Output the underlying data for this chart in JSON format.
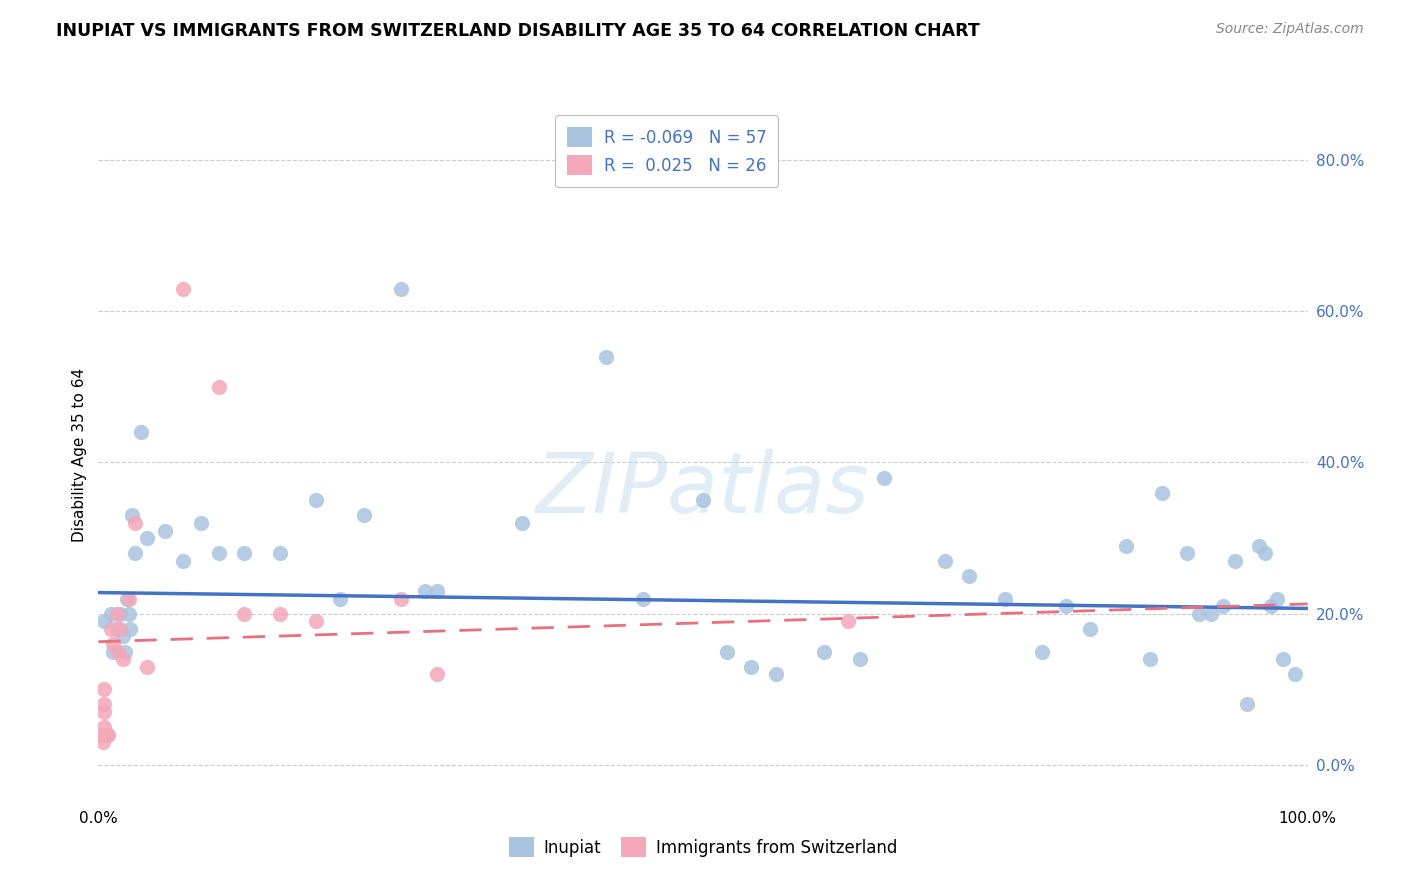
{
  "title": "INUPIAT VS IMMIGRANTS FROM SWITZERLAND DISABILITY AGE 35 TO 64 CORRELATION CHART",
  "source": "Source: ZipAtlas.com",
  "ylabel": "Disability Age 35 to 64",
  "legend_label1": "Inupiat",
  "legend_label2": "Immigrants from Switzerland",
  "r1": "-0.069",
  "n1": "57",
  "r2": "0.025",
  "n2": "26",
  "color1": "#a8c4e0",
  "color2": "#f4a7b9",
  "trendline1_color": "#4472c4",
  "trendline2_color": "#e8707e",
  "watermark": "ZIPatlas",
  "xlim": [
    0.0,
    1.0
  ],
  "ylim": [
    -0.05,
    0.87
  ],
  "yticks": [
    0.0,
    0.2,
    0.4,
    0.6,
    0.8
  ],
  "yticklabels": [
    "0.0%",
    "20.0%",
    "40.0%",
    "60.0%",
    "80.0%"
  ],
  "xtick_vals": [
    0.0,
    1.0
  ],
  "xtick_labels": [
    "0.0%",
    "100.0%"
  ],
  "blue_x": [
    0.005,
    0.01,
    0.012,
    0.015,
    0.018,
    0.02,
    0.022,
    0.024,
    0.025,
    0.026,
    0.028,
    0.03,
    0.035,
    0.04,
    0.055,
    0.07,
    0.085,
    0.1,
    0.12,
    0.15,
    0.18,
    0.2,
    0.22,
    0.25,
    0.27,
    0.28,
    0.35,
    0.42,
    0.45,
    0.5,
    0.52,
    0.54,
    0.56,
    0.6,
    0.63,
    0.65,
    0.7,
    0.72,
    0.75,
    0.78,
    0.8,
    0.82,
    0.85,
    0.87,
    0.88,
    0.9,
    0.91,
    0.92,
    0.93,
    0.94,
    0.95,
    0.96,
    0.965,
    0.97,
    0.975,
    0.98,
    0.99
  ],
  "blue_y": [
    0.19,
    0.2,
    0.15,
    0.18,
    0.2,
    0.17,
    0.15,
    0.22,
    0.2,
    0.18,
    0.33,
    0.28,
    0.44,
    0.3,
    0.31,
    0.27,
    0.32,
    0.28,
    0.28,
    0.28,
    0.35,
    0.22,
    0.33,
    0.63,
    0.23,
    0.23,
    0.32,
    0.54,
    0.22,
    0.35,
    0.15,
    0.13,
    0.12,
    0.15,
    0.14,
    0.38,
    0.27,
    0.25,
    0.22,
    0.15,
    0.21,
    0.18,
    0.29,
    0.14,
    0.36,
    0.28,
    0.2,
    0.2,
    0.21,
    0.27,
    0.08,
    0.29,
    0.28,
    0.21,
    0.22,
    0.14,
    0.12
  ],
  "pink_x": [
    0.003,
    0.004,
    0.005,
    0.005,
    0.005,
    0.005,
    0.006,
    0.007,
    0.008,
    0.01,
    0.012,
    0.015,
    0.016,
    0.018,
    0.02,
    0.025,
    0.03,
    0.04,
    0.07,
    0.1,
    0.12,
    0.15,
    0.18,
    0.25,
    0.28,
    0.62
  ],
  "pink_y": [
    0.04,
    0.03,
    0.07,
    0.05,
    0.08,
    0.1,
    0.04,
    0.04,
    0.04,
    0.18,
    0.16,
    0.2,
    0.15,
    0.18,
    0.14,
    0.22,
    0.32,
    0.13,
    0.63,
    0.5,
    0.2,
    0.2,
    0.19,
    0.22,
    0.12,
    0.19
  ],
  "trendline1_x": [
    0.0,
    1.0
  ],
  "trendline1_y": [
    0.228,
    0.207
  ],
  "trendline2_x": [
    0.0,
    1.0
  ],
  "trendline2_y": [
    0.163,
    0.213
  ],
  "grid_color": "#cccccc",
  "background_color": "#ffffff",
  "scatter_size": 120
}
